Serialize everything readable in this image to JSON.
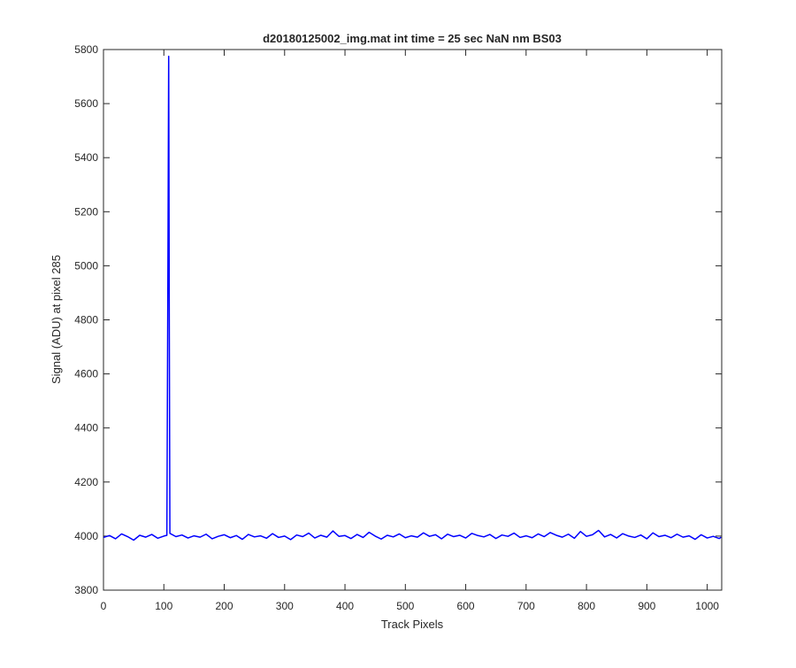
{
  "chart_data": {
    "type": "line",
    "title": "d20180125002_img.mat int time = 25 sec  NaN nm BS03",
    "x_label": "Track Pixels",
    "y_label": "Signal (ADU) at pixel 285",
    "xlim": [
      0,
      1024
    ],
    "ylim": [
      3800,
      5800
    ],
    "xticks": [
      0,
      100,
      200,
      300,
      400,
      500,
      600,
      700,
      800,
      900,
      1000
    ],
    "yticks": [
      3800,
      4000,
      4200,
      4400,
      4600,
      4800,
      5000,
      5200,
      5400,
      5600,
      5800
    ],
    "grid": false,
    "x": [
      0,
      10,
      20,
      30,
      40,
      50,
      60,
      70,
      80,
      90,
      100,
      105,
      107,
      108,
      109,
      110,
      120,
      130,
      140,
      150,
      160,
      170,
      180,
      190,
      200,
      210,
      220,
      230,
      240,
      250,
      260,
      270,
      280,
      290,
      300,
      310,
      320,
      330,
      340,
      350,
      360,
      370,
      380,
      390,
      400,
      410,
      420,
      430,
      440,
      450,
      460,
      470,
      480,
      490,
      500,
      510,
      520,
      530,
      540,
      550,
      560,
      570,
      580,
      590,
      600,
      610,
      620,
      630,
      640,
      650,
      660,
      670,
      680,
      690,
      700,
      710,
      720,
      730,
      740,
      750,
      760,
      770,
      780,
      790,
      800,
      810,
      820,
      830,
      840,
      850,
      860,
      870,
      880,
      890,
      900,
      910,
      920,
      930,
      940,
      950,
      960,
      970,
      980,
      990,
      1000,
      1010,
      1020,
      1023
    ],
    "series": [
      {
        "color": "#0000ff",
        "values": [
          3995,
          4002,
          3990,
          4008,
          3998,
          3985,
          4003,
          3996,
          4006,
          3992,
          4000,
          4003,
          5150,
          5775,
          4800,
          4010,
          3998,
          4004,
          3993,
          4001,
          3996,
          4007,
          3990,
          3999,
          4005,
          3994,
          4002,
          3988,
          4006,
          3997,
          4001,
          3992,
          4009,
          3995,
          4000,
          3987,
          4004,
          3998,
          4011,
          3993,
          4003,
          3996,
          4019,
          3999,
          4002,
          3991,
          4006,
          3995,
          4014,
          4000,
          3989,
          4003,
          3997,
          4008,
          3994,
          4001,
          3996,
          4012,
          3999,
          4005,
          3990,
          4007,
          3998,
          4003,
          3993,
          4010,
          4002,
          3997,
          4006,
          3991,
          4004,
          3999,
          4011,
          3995,
          4001,
          3994,
          4008,
          3998,
          4013,
          4003,
          3996,
          4007,
          3992,
          4017,
          3999,
          4005,
          4021,
          3997,
          4006,
          3993,
          4009,
          4000,
          3995,
          4004,
          3990,
          4012,
          3998,
          4003,
          3994,
          4007,
          3996,
          4001,
          3988,
          4005,
          3993,
          3999,
          3991,
          3996
        ]
      }
    ]
  }
}
